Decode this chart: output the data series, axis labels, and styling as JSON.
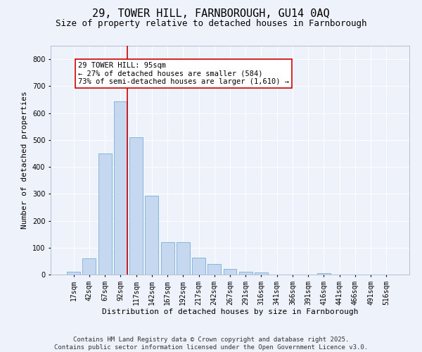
{
  "title_line1": "29, TOWER HILL, FARNBOROUGH, GU14 0AQ",
  "title_line2": "Size of property relative to detached houses in Farnborough",
  "xlabel": "Distribution of detached houses by size in Farnborough",
  "ylabel": "Number of detached properties",
  "categories": [
    "17sqm",
    "42sqm",
    "67sqm",
    "92sqm",
    "117sqm",
    "142sqm",
    "167sqm",
    "192sqm",
    "217sqm",
    "242sqm",
    "267sqm",
    "291sqm",
    "316sqm",
    "341sqm",
    "366sqm",
    "391sqm",
    "416sqm",
    "441sqm",
    "466sqm",
    "491sqm",
    "516sqm"
  ],
  "values": [
    11,
    60,
    450,
    643,
    510,
    292,
    120,
    120,
    63,
    40,
    22,
    10,
    8,
    0,
    0,
    0,
    5,
    0,
    0,
    0,
    0
  ],
  "bar_color": "#c5d8f0",
  "bar_edge_color": "#7aafd4",
  "vline_color": "#cc0000",
  "annotation_text": "29 TOWER HILL: 95sqm\n← 27% of detached houses are smaller (584)\n73% of semi-detached houses are larger (1,610) →",
  "annotation_box_facecolor": "#ffffff",
  "annotation_box_edgecolor": "#cc0000",
  "ylim": [
    0,
    850
  ],
  "yticks": [
    0,
    100,
    200,
    300,
    400,
    500,
    600,
    700,
    800
  ],
  "background_color": "#eef2fb",
  "grid_color": "#ffffff",
  "footer_line1": "Contains HM Land Registry data © Crown copyright and database right 2025.",
  "footer_line2": "Contains public sector information licensed under the Open Government Licence v3.0.",
  "title_fontsize": 11,
  "subtitle_fontsize": 9,
  "axis_label_fontsize": 8,
  "tick_fontsize": 7,
  "annotation_fontsize": 7.5,
  "footer_fontsize": 6.5
}
